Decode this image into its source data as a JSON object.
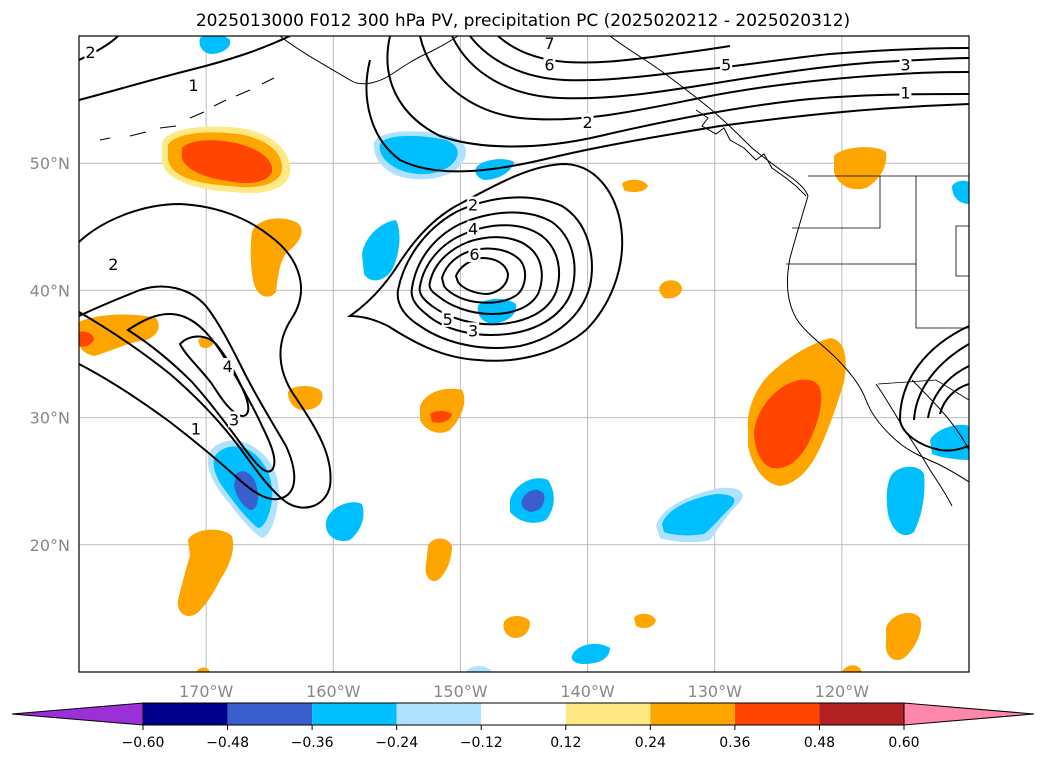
{
  "title": "2025013000 F012 300 hPa PV, precipitation PC (2025020212 - 2025020312)",
  "map": {
    "lon_range": [
      -180,
      -110
    ],
    "lat_range": [
      10,
      60
    ],
    "lon_ticks": [
      {
        "value": -170,
        "label": "170°W"
      },
      {
        "value": -160,
        "label": "160°W"
      },
      {
        "value": -150,
        "label": "150°W"
      },
      {
        "value": -140,
        "label": "140°W"
      },
      {
        "value": -130,
        "label": "130°W"
      },
      {
        "value": -120,
        "label": "120°W"
      }
    ],
    "lat_ticks": [
      {
        "value": 20,
        "label": "20°N"
      },
      {
        "value": 30,
        "label": "30°N"
      },
      {
        "value": 40,
        "label": "40°N"
      },
      {
        "value": 50,
        "label": "50°N"
      }
    ],
    "grid": true
  },
  "contour_labels": [
    {
      "text": "2",
      "lon": -179.1,
      "lat": 58.6
    },
    {
      "text": "1",
      "lon": -171.0,
      "lat": 56.0
    },
    {
      "text": "7",
      "lon": -143.0,
      "lat": 59.3
    },
    {
      "text": "6",
      "lon": -143.0,
      "lat": 57.6
    },
    {
      "text": "5",
      "lon": -129.1,
      "lat": 57.6
    },
    {
      "text": "3",
      "lon": -115.0,
      "lat": 57.6
    },
    {
      "text": "1",
      "lon": -115.0,
      "lat": 55.4
    },
    {
      "text": "2",
      "lon": -140.0,
      "lat": 53.1
    },
    {
      "text": "2",
      "lon": -149.0,
      "lat": 46.6
    },
    {
      "text": "4",
      "lon": -149.0,
      "lat": 44.7
    },
    {
      "text": "6",
      "lon": -148.9,
      "lat": 42.7
    },
    {
      "text": "5",
      "lon": -151.0,
      "lat": 37.6
    },
    {
      "text": "3",
      "lon": -149.0,
      "lat": 36.7
    },
    {
      "text": "2",
      "lon": -177.3,
      "lat": 41.9
    },
    {
      "text": "4",
      "lon": -168.3,
      "lat": 33.9
    },
    {
      "text": "3",
      "lon": -167.8,
      "lat": 29.7
    },
    {
      "text": "1",
      "lon": -170.8,
      "lat": 29.0
    }
  ],
  "colorbar": {
    "colors": [
      "#9b30d8",
      "#00008b",
      "#3a5fcd",
      "#00bfff",
      "#b0e2ff",
      "#ffffff",
      "#ffe985",
      "#ffa500",
      "#ff4500",
      "#b22222",
      "#ff88aa"
    ],
    "labels": [
      "−0.60",
      "−0.48",
      "−0.36",
      "−0.24",
      "−0.12",
      "0.12",
      "0.24",
      "0.36",
      "0.48",
      "0.60"
    ]
  }
}
